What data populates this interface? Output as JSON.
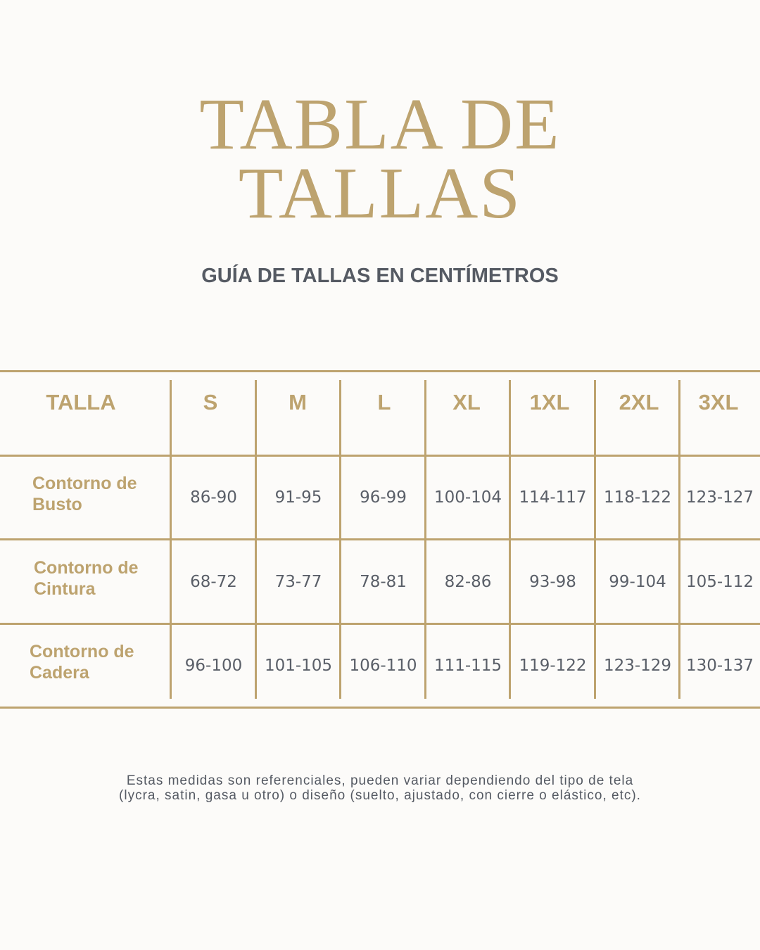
{
  "title_line1": "TABLA DE",
  "title_line2": "TALLAS",
  "subtitle": "GUÍA DE TALLAS EN CENTÍMETROS",
  "table": {
    "headers": [
      "TALLA",
      "S",
      "M",
      "L",
      "XL",
      "1XL",
      "2XL",
      "3XL"
    ],
    "rows": [
      {
        "label_line1": "Contorno de",
        "label_line2": "Busto",
        "values": [
          "86-90",
          "91-95",
          "96-99",
          "100-104",
          "114-117",
          "118-122",
          "123-127"
        ]
      },
      {
        "label_line1": "Contorno de",
        "label_line2": "Cintura",
        "values": [
          "68-72",
          "73-77",
          "78-81",
          "82-86",
          "93-98",
          "99-104",
          "105-112"
        ]
      },
      {
        "label_line1": "Contorno de",
        "label_line2": "Cadera",
        "values": [
          "96-100",
          "101-105",
          "106-110",
          "111-115",
          "119-122",
          "123-129",
          "130-137"
        ]
      }
    ]
  },
  "note_line1": "Estas medidas son referenciales, pueden variar dependiendo del tipo de tela",
  "note_line2": "(lycra, satin, gasa u otro) o diseño (suelto, ajustado, con cierre o elástico, etc).",
  "colors": {
    "accent": "#bda36f",
    "text": "#555a63",
    "background": "#fcfbf9"
  }
}
